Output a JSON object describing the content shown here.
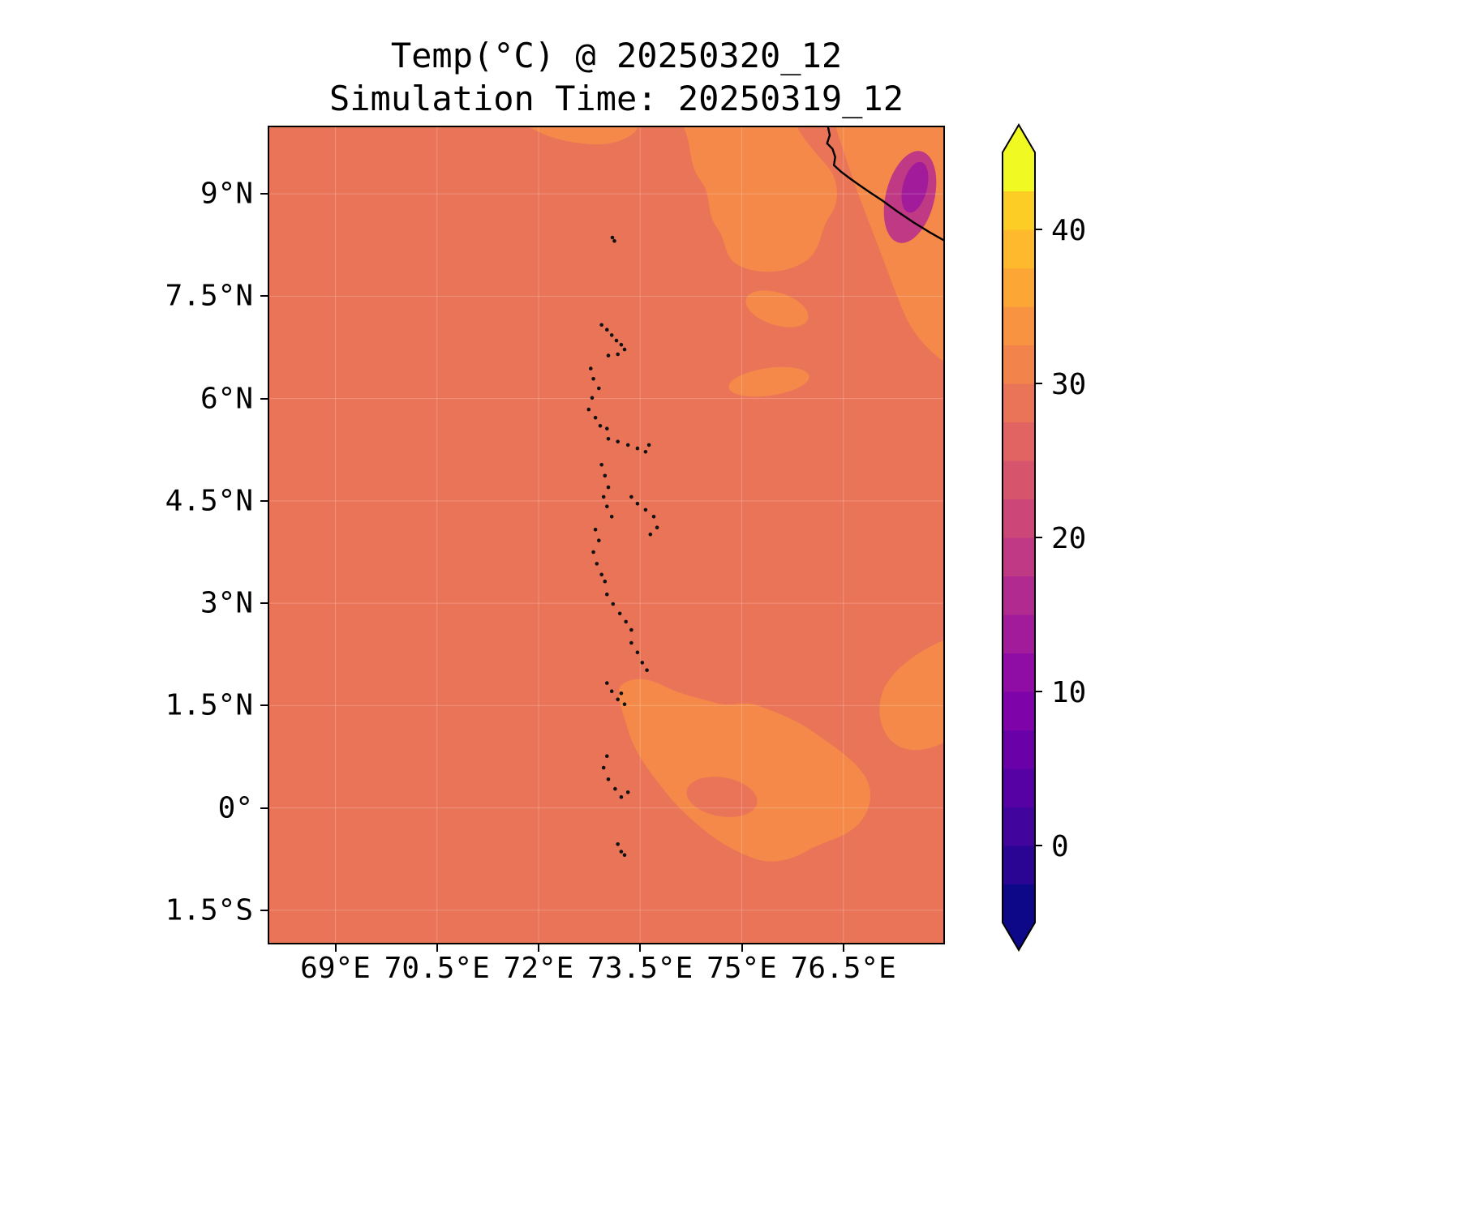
{
  "title": {
    "line1": "Temp(°C) @ 20250320_12",
    "line2": "Simulation Time: 20250319_12"
  },
  "axes": {
    "lat_ticks": [
      {
        "label": "9°N",
        "value": 9
      },
      {
        "label": "7.5°N",
        "value": 7.5
      },
      {
        "label": "6°N",
        "value": 6
      },
      {
        "label": "4.5°N",
        "value": 4.5
      },
      {
        "label": "3°N",
        "value": 3
      },
      {
        "label": "1.5°N",
        "value": 1.5
      },
      {
        "label": "0°",
        "value": 0
      },
      {
        "label": "1.5°S",
        "value": -1.5
      }
    ],
    "lon_ticks": [
      {
        "label": "69°E",
        "value": 69
      },
      {
        "label": "70.5°E",
        "value": 70.5
      },
      {
        "label": "72°E",
        "value": 72
      },
      {
        "label": "73.5°E",
        "value": 73.5
      },
      {
        "label": "75°E",
        "value": 75
      },
      {
        "label": "76.5°E",
        "value": 76.5
      }
    ]
  },
  "colorbar": {
    "vmin": -5,
    "vmax": 45,
    "colors_bottom_to_top": [
      "#0d0887",
      "#2a0593",
      "#41049d",
      "#5601a4",
      "#6a00a8",
      "#7e03a8",
      "#8f0da4",
      "#a11b9b",
      "#b12a90",
      "#bf3984",
      "#cc4778",
      "#d6556d",
      "#e16462",
      "#ea7457",
      "#f2844b",
      "#f89441",
      "#fca636",
      "#feba2c",
      "#fcce25",
      "#f0f921"
    ],
    "ticks": [
      {
        "label": "40",
        "value": 40
      },
      {
        "label": "30",
        "value": 30
      },
      {
        "label": "20",
        "value": 20
      },
      {
        "label": "10",
        "value": 10
      },
      {
        "label": "0",
        "value": 0
      }
    ]
  },
  "colors": {
    "sea": "#ea7457",
    "warm_patch": "#f4894a",
    "cool_outer": "#bf3984",
    "cool_inner": "#a11b9b",
    "coastline": "#000000",
    "atoll": "#111111",
    "gridline": "rgba(255,255,255,0.22)",
    "frame": "#000000"
  },
  "chart_data": {
    "type": "heatmap",
    "title": "Temp(°C) @ 20250320_12",
    "subtitle": "Simulation Time: 20250319_12",
    "variable": "Temperature",
    "units": "°C",
    "valid_time": "20250320_12",
    "simulation_time": "20250319_12",
    "extent": {
      "lon_min": 68,
      "lon_max": 78,
      "lat_min": -2,
      "lat_max": 10
    },
    "colormap": "plasma (discrete bands)",
    "levels": {
      "min": -5,
      "max": 45,
      "step": 2.5
    },
    "colorbar_ticks": [
      0,
      10,
      20,
      30,
      40
    ],
    "legend_position": "right",
    "grid": "faint graticule at tick lines",
    "regions": [
      {
        "name": "open ocean background (most of domain)",
        "approx_temp_c": "27.5-30"
      },
      {
        "name": "warm patch NE (73.5-76.5E, 7.3-10N)",
        "approx_temp_c": "30-32.5"
      },
      {
        "name": "warm patch SW India coastal strip inland (76-78E, 8-10N)",
        "approx_temp_c": "30-32.5"
      },
      {
        "name": "cool Western Ghats spot (76.6-77.3E, 8.6-9.9N)",
        "approx_temp_c": "15-22.5"
      },
      {
        "name": "warm mid-ocean patch (74.8-75.9E, 6.1-6.5N)",
        "approx_temp_c": "30-32.5"
      },
      {
        "name": "warm equatorial patch (73.2-76.8E, 2N-0.7S)",
        "approx_temp_c": "30-32.5"
      },
      {
        "name": "warm patch at right edge (77.1-78E, 0.8-2.4N)",
        "approx_temp_c": "30-32.5"
      }
    ],
    "map_overlays": {
      "coastline_india_sw": [
        [
          76.27,
          10.0
        ],
        [
          76.3,
          9.86
        ],
        [
          76.26,
          9.74
        ],
        [
          76.34,
          9.66
        ],
        [
          76.38,
          9.54
        ],
        [
          76.36,
          9.42
        ],
        [
          76.46,
          9.33
        ],
        [
          76.58,
          9.24
        ],
        [
          76.72,
          9.14
        ],
        [
          76.88,
          9.03
        ],
        [
          77.08,
          8.9
        ],
        [
          77.3,
          8.74
        ],
        [
          77.54,
          8.58
        ],
        [
          77.77,
          8.44
        ],
        [
          78.0,
          8.31
        ]
      ],
      "maldives_atolls": [
        [
          73.09,
          8.36
        ],
        [
          73.12,
          8.31
        ],
        [
          72.93,
          7.08
        ],
        [
          73.01,
          7.01
        ],
        [
          73.08,
          6.93
        ],
        [
          73.15,
          6.85
        ],
        [
          73.22,
          6.79
        ],
        [
          73.27,
          6.72
        ],
        [
          73.17,
          6.65
        ],
        [
          73.03,
          6.63
        ],
        [
          72.77,
          6.44
        ],
        [
          72.81,
          6.29
        ],
        [
          72.89,
          6.15
        ],
        [
          72.79,
          6.01
        ],
        [
          72.74,
          5.84
        ],
        [
          72.84,
          5.72
        ],
        [
          72.91,
          5.6
        ],
        [
          73.01,
          5.56
        ],
        [
          73.03,
          5.41
        ],
        [
          73.17,
          5.37
        ],
        [
          73.32,
          5.32
        ],
        [
          73.46,
          5.27
        ],
        [
          73.58,
          5.22
        ],
        [
          73.63,
          5.32
        ],
        [
          72.93,
          5.03
        ],
        [
          72.98,
          4.87
        ],
        [
          73.03,
          4.7
        ],
        [
          72.96,
          4.56
        ],
        [
          73.01,
          4.42
        ],
        [
          73.08,
          4.27
        ],
        [
          73.37,
          4.56
        ],
        [
          73.46,
          4.46
        ],
        [
          73.58,
          4.37
        ],
        [
          73.7,
          4.27
        ],
        [
          73.75,
          4.11
        ],
        [
          73.65,
          4.01
        ],
        [
          72.84,
          4.08
        ],
        [
          72.89,
          3.92
        ],
        [
          72.81,
          3.75
        ],
        [
          72.86,
          3.58
        ],
        [
          72.93,
          3.42
        ],
        [
          72.98,
          3.32
        ],
        [
          73.01,
          3.13
        ],
        [
          73.1,
          2.99
        ],
        [
          73.2,
          2.85
        ],
        [
          73.29,
          2.73
        ],
        [
          73.37,
          2.61
        ],
        [
          73.37,
          2.42
        ],
        [
          73.46,
          2.28
        ],
        [
          73.53,
          2.13
        ],
        [
          73.6,
          2.02
        ],
        [
          73.01,
          1.83
        ],
        [
          73.08,
          1.71
        ],
        [
          73.17,
          1.59
        ],
        [
          73.27,
          1.52
        ],
        [
          73.22,
          1.68
        ],
        [
          73.01,
          0.76
        ],
        [
          72.96,
          0.59
        ],
        [
          73.03,
          0.42
        ],
        [
          73.13,
          0.28
        ],
        [
          73.22,
          0.16
        ],
        [
          73.32,
          0.23
        ],
        [
          73.17,
          -0.53
        ],
        [
          73.22,
          -0.64
        ],
        [
          73.27,
          -0.69
        ]
      ]
    }
  }
}
